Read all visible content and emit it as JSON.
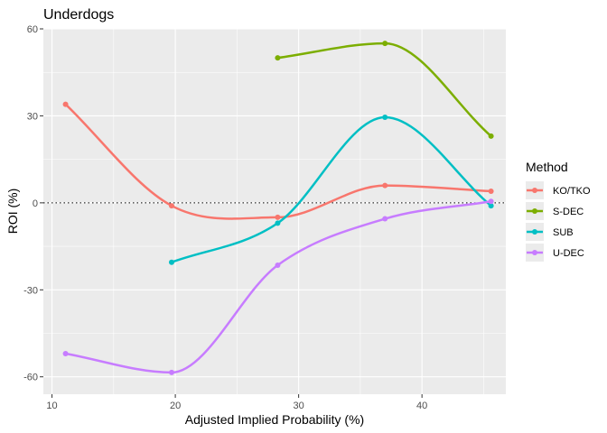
{
  "chart_data": {
    "type": "line",
    "title": "Underdogs",
    "xlabel": "Adjusted Implied Probability (%)",
    "ylabel": "ROI (%)",
    "xlim": [
      9.3,
      46.8
    ],
    "ylim": [
      -66,
      60
    ],
    "x_ticks": [
      10,
      20,
      30,
      40
    ],
    "y_ticks": [
      -60,
      -30,
      0,
      30,
      60
    ],
    "x_tick_labels": [
      "10",
      "20",
      "30",
      "40"
    ],
    "y_tick_labels": [
      "-60",
      "-30",
      "0",
      "30",
      "60"
    ],
    "reference_line": {
      "y": 0,
      "style": "dotted"
    },
    "legend": {
      "title": "Method",
      "placement": "right"
    },
    "series": [
      {
        "name": "KO/TKO",
        "color": "#F8766D",
        "points": [
          [
            11.1,
            34
          ],
          [
            19.7,
            -1
          ],
          [
            28.3,
            -5
          ],
          [
            37.0,
            6
          ],
          [
            45.6,
            4
          ]
        ]
      },
      {
        "name": "S-DEC",
        "color": "#7CAE00",
        "points": [
          [
            28.3,
            50
          ],
          [
            37.0,
            55
          ],
          [
            45.6,
            23
          ]
        ]
      },
      {
        "name": "SUB",
        "color": "#00BFC4",
        "points": [
          [
            19.7,
            -20.5
          ],
          [
            28.3,
            -7
          ],
          [
            37.0,
            29.5
          ],
          [
            45.6,
            -1
          ]
        ]
      },
      {
        "name": "U-DEC",
        "color": "#C77CFF",
        "points": [
          [
            11.1,
            -52
          ],
          [
            19.7,
            -58.5
          ],
          [
            28.3,
            -21.5
          ],
          [
            37.0,
            -5.5
          ],
          [
            45.6,
            0.5
          ]
        ]
      }
    ]
  }
}
